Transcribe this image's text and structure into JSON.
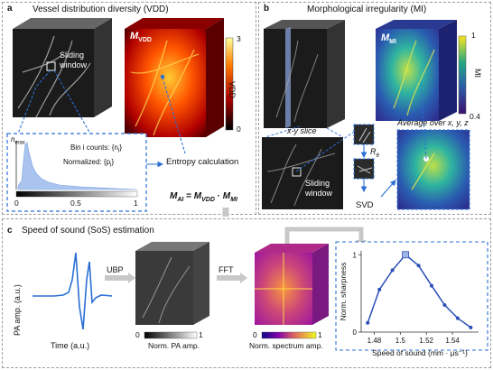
{
  "panel_a": {
    "label": "a",
    "title": "Vessel distribution diversity (VDD)",
    "sliding_window": "Sliding window",
    "map_label": "M",
    "map_sub": "VDD",
    "colorbar_title": "VDD",
    "colorbar_max": "3",
    "colorbar_min": "0",
    "hist_ylabel": "n",
    "hist_ysub": "max",
    "hist_line1": "Bin i counts: {n",
    "hist_line1_sub": "i",
    "hist_line2": "Normalized: {p",
    "hist_line2_sub": "i",
    "hist_ticks": [
      "0",
      "0.5",
      "1"
    ],
    "entropy": "Entropy calculation"
  },
  "panel_b": {
    "label": "b",
    "title": "Morphological irregularity (MI)",
    "map_label": "M",
    "map_sub": "MI",
    "colorbar_title": "MI",
    "colorbar_max": "1",
    "colorbar_min": "0.4",
    "xy_slice": "x-y slice",
    "sliding_window": "Sliding window",
    "r_theta": "R",
    "r_theta_sub": "θ",
    "svd": "SVD",
    "average": "Average over x, y, z"
  },
  "equation": {
    "m_ai": "M",
    "m_ai_sub": "AI",
    "eq": " = ",
    "m_vdd": "M",
    "m_vdd_sub": "VDD",
    "dot": " · ",
    "m_mi": "M",
    "m_mi_sub": "MI"
  },
  "panel_c": {
    "label": "c",
    "title": "Speed of sound (SoS) estimation",
    "pa_ylabel": "PA amp. (a.u.)",
    "pa_xlabel": "Time (a.u.)",
    "ubp": "UBP",
    "fft": "FFT",
    "norm_pa": "Norm. PA amp.",
    "norm_spec": "Norm. spectrum amp.",
    "cb_min": "0",
    "cb_max": "1",
    "cb2_min": "0",
    "cb2_max": "1"
  },
  "chart_data": {
    "type": "line",
    "xlabel": "Speed of sound (mm · μs⁻¹)",
    "ylabel": "Norm. sharpness",
    "x": [
      1.475,
      1.484,
      1.494,
      1.504,
      1.514,
      1.524,
      1.534,
      1.544,
      1.554
    ],
    "y": [
      0.12,
      0.55,
      0.8,
      1.0,
      0.86,
      0.6,
      0.35,
      0.18,
      0.06
    ],
    "highlight_index": 3,
    "xlim": [
      1.47,
      1.56
    ],
    "ylim": [
      0,
      1.05
    ],
    "xticks": [
      "1.48",
      "1.5",
      "1.52",
      "1.54"
    ],
    "yticks": [
      "0",
      "1"
    ],
    "color": "#2c4fb8"
  }
}
